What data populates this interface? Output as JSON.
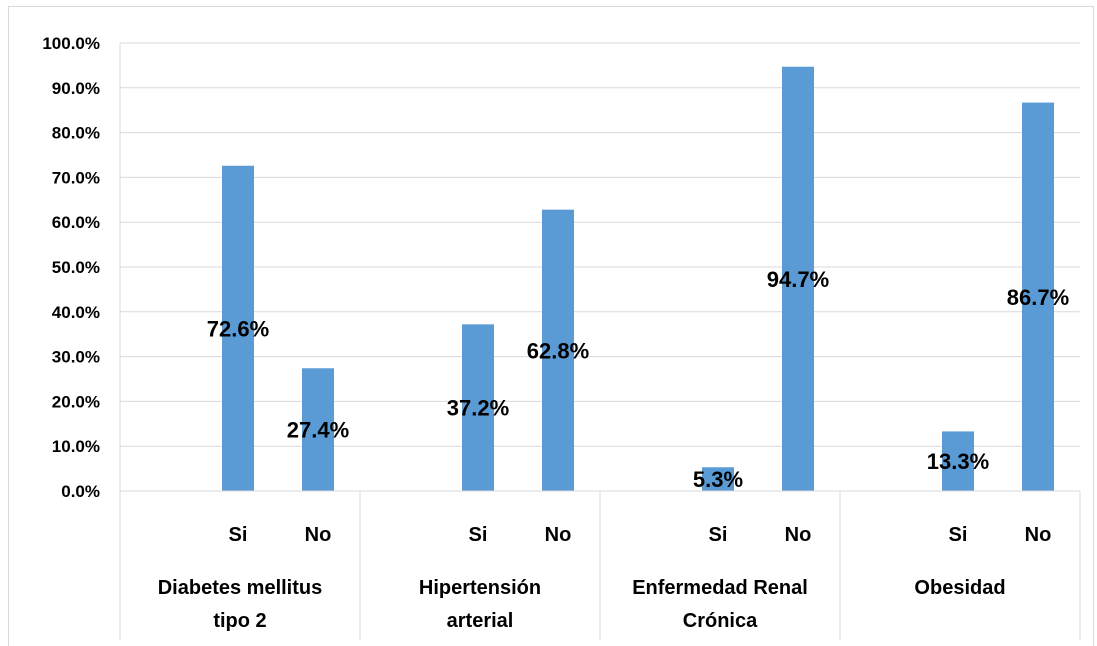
{
  "chart_data": {
    "type": "bar",
    "title": "",
    "xlabel": "",
    "ylabel": "",
    "ylim": [
      0,
      100
    ],
    "y_ticks": [
      "0.0%",
      "10.0%",
      "20.0%",
      "30.0%",
      "40.0%",
      "50.0%",
      "60.0%",
      "70.0%",
      "80.0%",
      "90.0%",
      "100.0%"
    ],
    "grid": true,
    "legend": "none",
    "bar_color": "#5b9bd5",
    "groups": [
      {
        "name": "Diabetes mellitus tipo 2",
        "name_lines": [
          "Diabetes mellitus",
          "tipo 2"
        ],
        "bars": [
          {
            "label": "Si",
            "value": 72.6,
            "value_label": "72.6%"
          },
          {
            "label": "No",
            "value": 27.4,
            "value_label": "27.4%"
          }
        ]
      },
      {
        "name": "Hipertensión arterial",
        "name_lines": [
          "Hipertensión",
          "arterial"
        ],
        "bars": [
          {
            "label": "Si",
            "value": 37.2,
            "value_label": "37.2%"
          },
          {
            "label": "No",
            "value": 62.8,
            "value_label": "62.8%"
          }
        ]
      },
      {
        "name": "Enfermedad Renal Crónica",
        "name_lines": [
          "Enfermedad Renal",
          "Crónica"
        ],
        "bars": [
          {
            "label": "Si",
            "value": 5.3,
            "value_label": "5.3%"
          },
          {
            "label": "No",
            "value": 94.7,
            "value_label": "94.7%"
          }
        ]
      },
      {
        "name": "Obesidad",
        "name_lines": [
          "Obesidad"
        ],
        "bars": [
          {
            "label": "Si",
            "value": 13.3,
            "value_label": "13.3%"
          },
          {
            "label": "No",
            "value": 86.7,
            "value_label": "86.7%"
          }
        ]
      }
    ]
  }
}
